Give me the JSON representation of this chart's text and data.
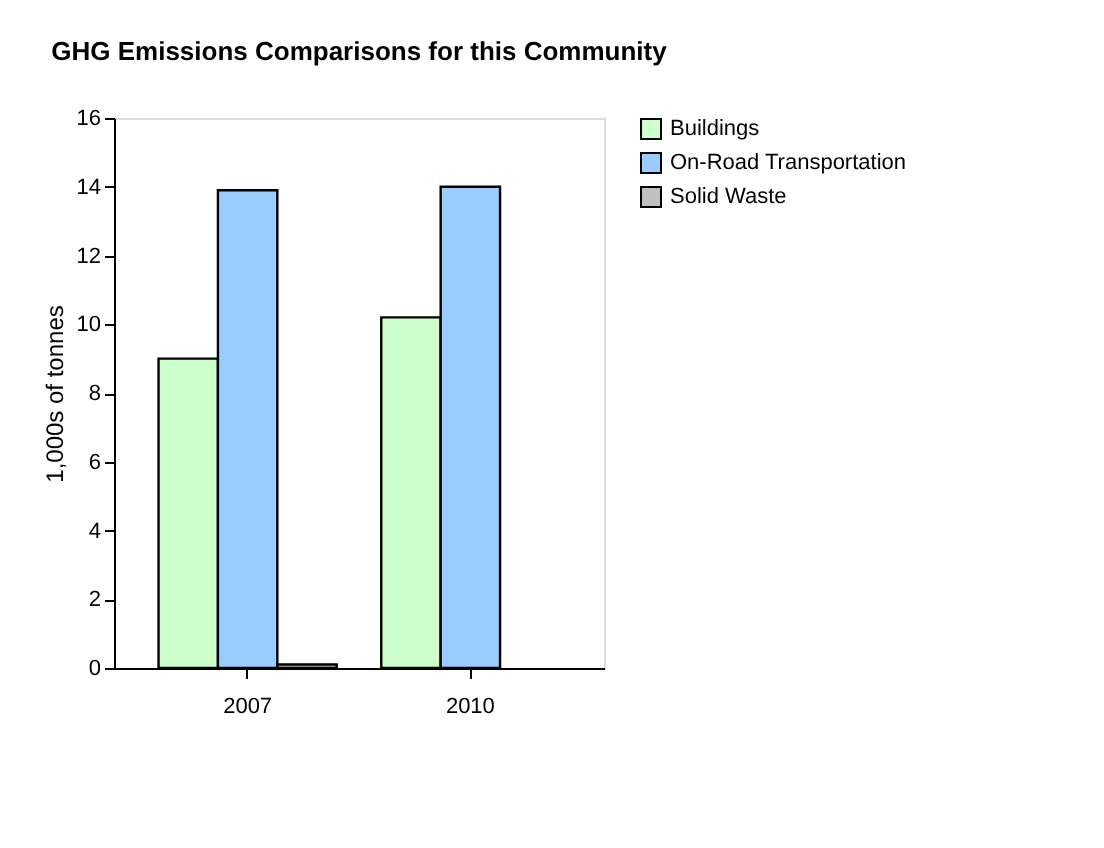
{
  "chart_data": {
    "type": "bar",
    "title": "GHG Emissions Comparisons for this Community",
    "ylabel": "1,000s of tonnes",
    "categories": [
      "2007",
      "2010"
    ],
    "series": [
      {
        "name": "Buildings",
        "color": "#ccffcc",
        "values": [
          9.0,
          10.2
        ]
      },
      {
        "name": "On-Road Transportation",
        "color": "#99ccff",
        "values": [
          13.9,
          14.0
        ]
      },
      {
        "name": "Solid Waste",
        "color": "#c0c0c0",
        "values": [
          0.1,
          null
        ]
      }
    ],
    "ylim": [
      0,
      16
    ],
    "yticks": [
      0,
      2,
      4,
      6,
      8,
      10,
      12,
      14,
      16
    ],
    "grid": false,
    "legend": "right"
  }
}
